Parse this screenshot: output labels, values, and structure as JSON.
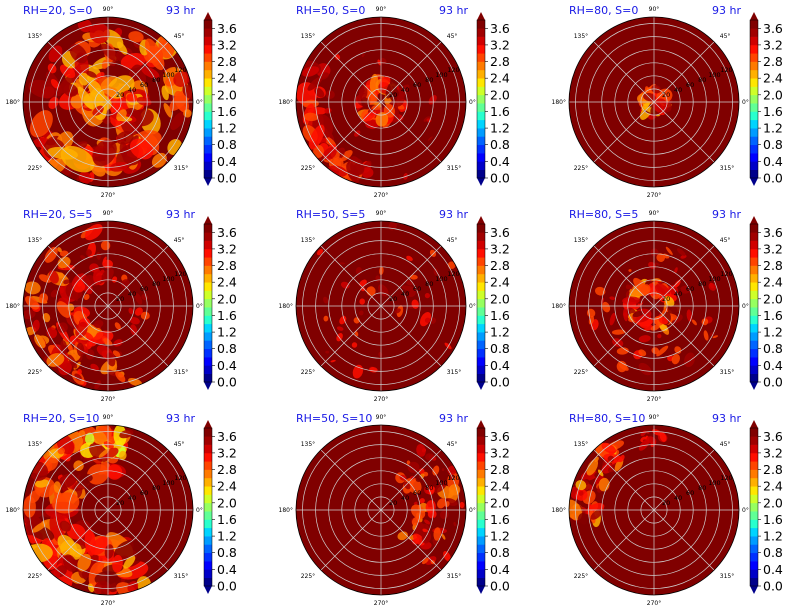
{
  "chart_data": {
    "type": "polar-contourf",
    "time_label": "93 hr",
    "angle_ticks": [
      "90°",
      "45°",
      "0°",
      "315°",
      "270°",
      "225°",
      "180°",
      "135°"
    ],
    "radial_ticks": [
      "20",
      "40",
      "60",
      "80",
      "100",
      "120"
    ],
    "colorbar": {
      "ticks": [
        "0.0",
        "0.4",
        "0.8",
        "1.2",
        "1.6",
        "2.0",
        "2.4",
        "2.8",
        "3.2",
        "3.6"
      ],
      "levels": [
        0,
        0.2,
        0.4,
        0.6,
        0.8,
        1.0,
        1.2,
        1.4,
        1.6,
        1.8,
        2.0,
        2.2,
        2.4,
        2.6,
        2.8,
        3.0,
        3.2,
        3.4,
        3.6,
        3.8
      ],
      "colors": [
        "#00008b",
        "#0000c8",
        "#0000ff",
        "#0030ff",
        "#0064ff",
        "#009cff",
        "#00d4ff",
        "#29ffce",
        "#60ff96",
        "#96ff60",
        "#ceff29",
        "#ffe600",
        "#ffb000",
        "#ff7a00",
        "#ff4400",
        "#ff0e00",
        "#d00000",
        "#a00000",
        "#800000"
      ],
      "range": [
        0.0,
        3.8
      ],
      "extend": "both"
    },
    "panels": [
      {
        "title": "RH=20, S=0",
        "rh": 20,
        "s": 0,
        "pattern": "dense inner spiral bands, high values throughout",
        "radial_labels": true
      },
      {
        "title": "RH=50, S=0",
        "rh": 50,
        "s": 0,
        "pattern": "compact eye ring near center, sparse outer bands",
        "radial_labels": true
      },
      {
        "title": "RH=80, S=0",
        "rh": 80,
        "s": 0,
        "pattern": "small compact eye ring near center",
        "radial_labels": true
      },
      {
        "title": "RH=20, S=5",
        "rh": 20,
        "s": 5,
        "pattern": "fragmented bands, mostly outer left",
        "radial_labels": true
      },
      {
        "title": "RH=50, S=5",
        "rh": 50,
        "s": 5,
        "pattern": "sparse scattered cells",
        "radial_labels": true
      },
      {
        "title": "RH=80, S=5",
        "rh": 80,
        "s": 5,
        "pattern": "ring at ~30-40 radius with spiral arms",
        "radial_labels": true
      },
      {
        "title": "RH=20, S=10",
        "rh": 20,
        "s": 10,
        "pattern": "large outer area on left and top",
        "radial_labels": true
      },
      {
        "title": "RH=50, S=10",
        "rh": 50,
        "s": 10,
        "pattern": "scattered cells on right side",
        "radial_labels": true
      },
      {
        "title": "RH=80, S=10",
        "rh": 80,
        "s": 10,
        "pattern": "outer cells on upper left",
        "radial_labels": true
      }
    ]
  }
}
